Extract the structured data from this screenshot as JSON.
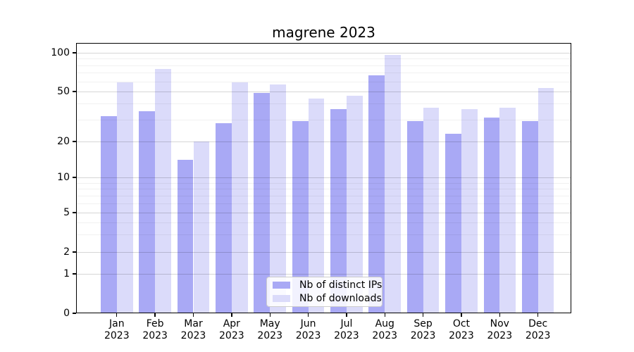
{
  "chart_data": {
    "type": "bar",
    "title": "magrene 2023",
    "categories": [
      "Jan",
      "Feb",
      "Mar",
      "Apr",
      "May",
      "Jun",
      "Jul",
      "Aug",
      "Sep",
      "Oct",
      "Nov",
      "Dec"
    ],
    "category_year": "2023",
    "series": [
      {
        "name": "Nb of distinct IPs",
        "color": "#a9a9f5",
        "values": [
          32,
          35,
          14,
          28,
          49,
          29,
          36,
          67,
          29,
          23,
          31,
          29
        ]
      },
      {
        "name": "Nb of downloads",
        "color": "#dbdbfa",
        "values": [
          59,
          75,
          20,
          59,
          57,
          44,
          46,
          96,
          37,
          36,
          37,
          53
        ]
      }
    ],
    "y_axis": {
      "scale": "symlog",
      "ticks": [
        100,
        50,
        20,
        10,
        5,
        2,
        1,
        0
      ],
      "minor_gridlines": [
        3,
        4,
        6,
        7,
        8,
        9,
        30,
        40,
        60,
        70,
        80,
        90
      ],
      "ylim": [
        0,
        110
      ]
    },
    "x_axis": {
      "label_line2": "2023"
    },
    "legend": {
      "position": "lower center",
      "entries": [
        "Nb of distinct IPs",
        "Nb of downloads"
      ]
    },
    "grid": true,
    "colors": {
      "distinct_ips": "#a9a9f5",
      "downloads": "#dbdbfa",
      "gridline_major": "rgba(0,0,0,0.16)",
      "gridline_minor": "rgba(0,0,0,0.055)",
      "spine": "#000000"
    }
  }
}
